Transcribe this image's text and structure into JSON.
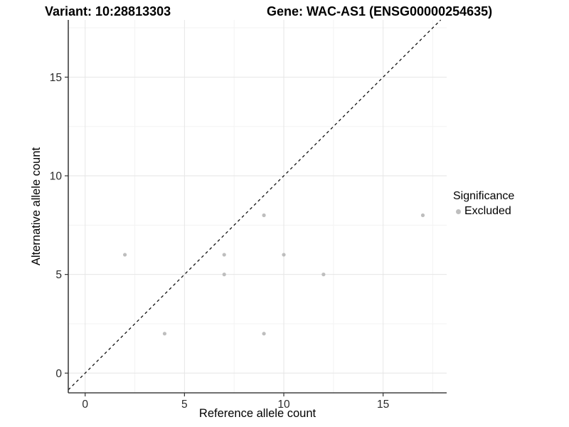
{
  "header": {
    "variant_title": "Variant: 10:28813303",
    "gene_title": "Gene: WAC-AS1 (ENSG00000254635)"
  },
  "chart_data": {
    "type": "scatter",
    "title": "Variant: 10:28813303 — Gene: WAC-AS1 (ENSG00000254635)",
    "xlabel": "Reference allele count",
    "ylabel": "Alternative allele count",
    "xlim": [
      -0.85,
      18.2
    ],
    "ylim": [
      -1.0,
      17.9
    ],
    "x_ticks": [
      0,
      5,
      10,
      15
    ],
    "y_ticks": [
      0,
      5,
      10,
      15
    ],
    "x_minor_ticks": [
      2.5,
      7.5,
      12.5,
      17.5
    ],
    "y_minor_ticks": [
      2.5,
      7.5,
      12.5,
      17.5
    ],
    "grid": "major-and-minor",
    "legend_position": "right",
    "series": [
      {
        "name": "Excluded",
        "color": "#bebebe",
        "points": [
          [
            2,
            6
          ],
          [
            4,
            2
          ],
          [
            7,
            5
          ],
          [
            7,
            6
          ],
          [
            9,
            2
          ],
          [
            9,
            8
          ],
          [
            10,
            6
          ],
          [
            12,
            5
          ],
          [
            17,
            8
          ]
        ]
      }
    ],
    "reference_line": {
      "type": "identity y=x",
      "style": "dashed",
      "color": "#111111"
    }
  },
  "legend": {
    "title": "Significance",
    "items": [
      {
        "label": "Excluded",
        "color": "#bebebe"
      }
    ]
  },
  "colors": {
    "background": "#ffffff",
    "grid_major": "#e6e6e6",
    "grid_minor": "#f3f3f3",
    "axis_line": "#404040",
    "tick_mark": "#333333",
    "tick_label": "#2b2b2b",
    "point": "#bebebe"
  }
}
